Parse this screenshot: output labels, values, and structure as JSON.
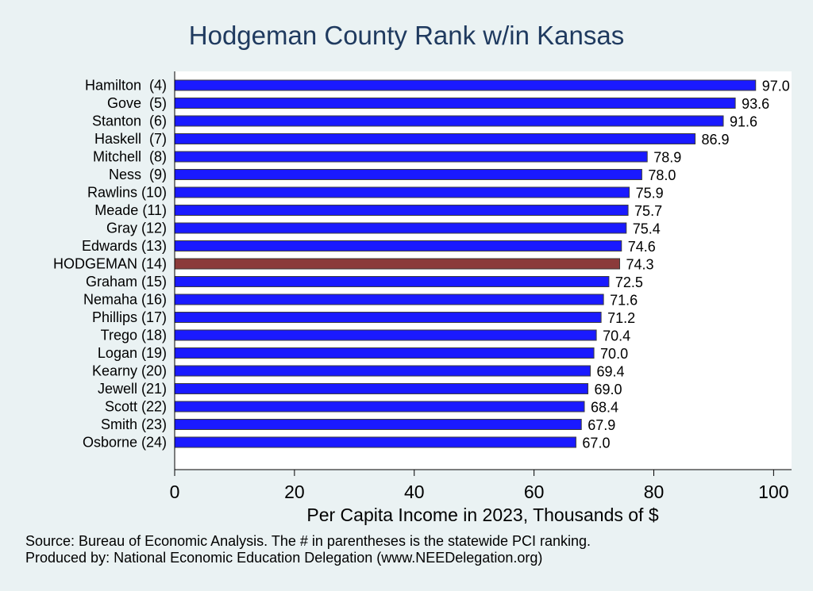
{
  "chart_data": {
    "type": "bar",
    "orientation": "horizontal",
    "title": "Hodgeman County Rank w/in Kansas",
    "xlabel": "Per Capita Income in 2023, Thousands of $",
    "xlim": [
      0,
      103
    ],
    "xticks": [
      "0",
      "20",
      "40",
      "60",
      "80",
      "100"
    ],
    "grid": false,
    "colors": {
      "default": "#1a1aff",
      "highlight": "#8b3a3a"
    },
    "categories": [
      "Hamilton  (4)",
      "Gove  (5)",
      "Stanton  (6)",
      "Haskell  (7)",
      "Mitchell  (8)",
      "Ness  (9)",
      "Rawlins (10)",
      "Meade (11)",
      "Gray (12)",
      "Edwards (13)",
      "HODGEMAN (14)",
      "Graham (15)",
      "Nemaha (16)",
      "Phillips (17)",
      "Trego (18)",
      "Logan (19)",
      "Kearny (20)",
      "Jewell (21)",
      "Scott (22)",
      "Smith (23)",
      "Osborne (24)"
    ],
    "values": [
      97.0,
      93.6,
      91.6,
      86.9,
      78.9,
      78.0,
      75.9,
      75.7,
      75.4,
      74.6,
      74.3,
      72.5,
      71.6,
      71.2,
      70.4,
      70.0,
      69.4,
      69.0,
      68.4,
      67.9,
      67.0
    ],
    "value_labels": [
      "97.0",
      "93.6",
      "91.6",
      "86.9",
      "78.9",
      "78.0",
      "75.9",
      "75.7",
      "75.4",
      "74.6",
      "74.3",
      "72.5",
      "71.6",
      "71.2",
      "70.4",
      "70.0",
      "69.4",
      "69.0",
      "68.4",
      "67.9",
      "67.0"
    ],
    "highlight": "HODGEMAN (14)"
  },
  "footer": {
    "source": "Source: Bureau of Economic Analysis. The # in parentheses is the statewide PCI ranking.",
    "produced_by": "Produced by: National Economic Education Delegation (www.NEEDelegation.org)"
  }
}
